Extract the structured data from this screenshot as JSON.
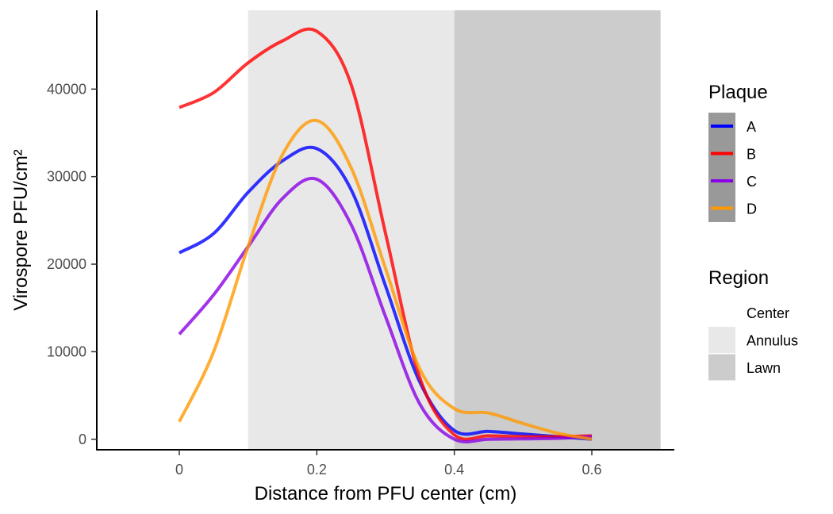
{
  "chart_data": {
    "type": "line",
    "xlabel": "Distance from PFU center (cm)",
    "ylabel": "Virospore PFU/cm²",
    "xlim": [
      -0.12,
      0.72
    ],
    "ylim": [
      -1200,
      49000
    ],
    "x_ticks": [
      0,
      0.2,
      0.4,
      0.6
    ],
    "x_tick_labels": [
      "0",
      "0.2",
      "0.4",
      "0.6"
    ],
    "y_ticks": [
      0,
      10000,
      20000,
      30000,
      40000
    ],
    "y_tick_labels": [
      "0",
      "10000",
      "20000",
      "30000",
      "40000"
    ],
    "grid": false,
    "legend_position": "right",
    "regions": [
      {
        "name": "Center",
        "from": -0.12,
        "to": 0.1,
        "color": "#ffffff"
      },
      {
        "name": "Annulus",
        "from": 0.1,
        "to": 0.4,
        "color": "#e8e8e8"
      },
      {
        "name": "Lawn",
        "from": 0.4,
        "to": 0.7,
        "color": "#cccccc"
      }
    ],
    "series": [
      {
        "name": "A",
        "color": "#0000ff",
        "x": [
          0,
          0.05,
          0.1,
          0.15,
          0.2,
          0.25,
          0.3,
          0.35,
          0.4,
          0.45,
          0.5,
          0.55,
          0.6
        ],
        "y": [
          21300,
          23500,
          28200,
          31800,
          33200,
          28500,
          17500,
          6500,
          1000,
          900,
          600,
          300,
          0
        ]
      },
      {
        "name": "B",
        "color": "#ff0000",
        "x": [
          0,
          0.05,
          0.1,
          0.15,
          0.2,
          0.25,
          0.3,
          0.35,
          0.4,
          0.45,
          0.5,
          0.55,
          0.6
        ],
        "y": [
          37900,
          39600,
          43000,
          45500,
          46600,
          40500,
          23500,
          7000,
          500,
          400,
          300,
          300,
          400
        ]
      },
      {
        "name": "C",
        "color": "#8a00e6",
        "x": [
          0,
          0.05,
          0.1,
          0.15,
          0.2,
          0.25,
          0.3,
          0.35,
          0.4,
          0.45,
          0.5,
          0.55,
          0.6
        ],
        "y": [
          12000,
          16500,
          22000,
          27500,
          29700,
          24500,
          14000,
          4000,
          0,
          0,
          50,
          100,
          300
        ]
      },
      {
        "name": "D",
        "color": "#ff9900",
        "x": [
          0,
          0.05,
          0.1,
          0.15,
          0.2,
          0.25,
          0.3,
          0.35,
          0.4,
          0.45,
          0.5,
          0.55,
          0.6
        ],
        "y": [
          2000,
          10000,
          22000,
          32500,
          36400,
          31000,
          19500,
          8000,
          3500,
          3000,
          1800,
          700,
          0
        ]
      }
    ],
    "legend_titles": {
      "series": "Plaque",
      "regions": "Region"
    }
  },
  "colors": {
    "legend_key_bg": "#999999",
    "axis_line": "#000000",
    "tick_label": "#4d4d4d"
  }
}
